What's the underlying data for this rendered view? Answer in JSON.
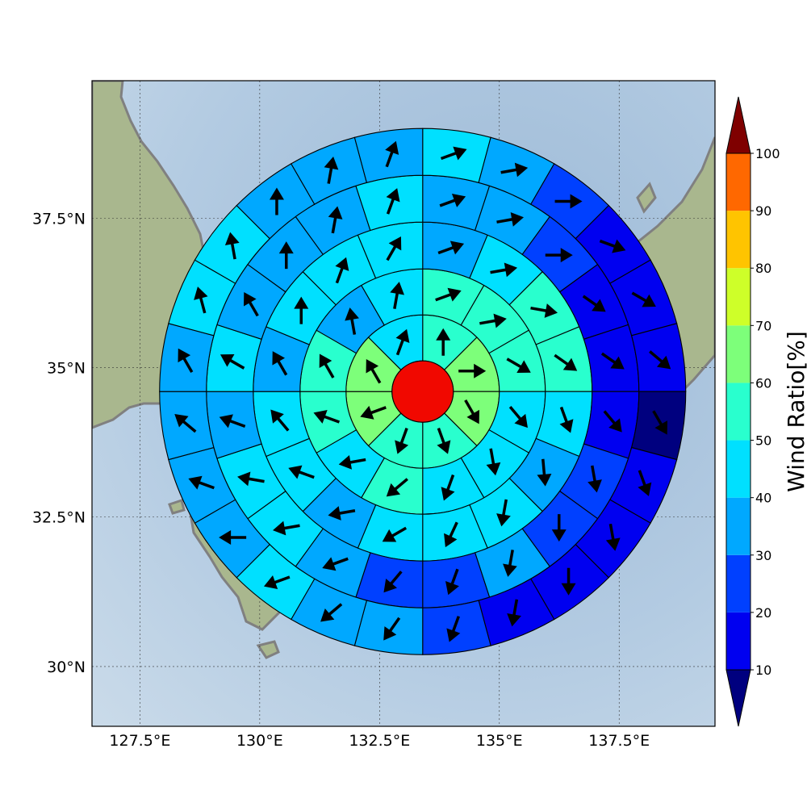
{
  "chart_data": {
    "type": "heatmap",
    "subtype": "polar sector wind-ratio map with direction arrows",
    "title": "",
    "map": {
      "lon_range": [
        126.5,
        139.5
      ],
      "lat_range": [
        29,
        39.8
      ],
      "x_ticks": [
        {
          "value": 127.5,
          "label": "127.5°E"
        },
        {
          "value": 130,
          "label": "130°E"
        },
        {
          "value": 132.5,
          "label": "132.5°E"
        },
        {
          "value": 135,
          "label": "135°E"
        },
        {
          "value": 137.5,
          "label": "137.5°E"
        }
      ],
      "y_ticks": [
        {
          "value": 30,
          "label": "30°N"
        },
        {
          "value": 32.5,
          "label": "32.5°N"
        },
        {
          "value": 35,
          "label": "35°N"
        },
        {
          "value": 37.5,
          "label": "37.5°N"
        }
      ],
      "grid": true,
      "colors": {
        "sea": "#a7c2dc",
        "land": "#a9b78e",
        "coastline": "#808080"
      }
    },
    "center": {
      "lon": 133.4,
      "lat": 34.6,
      "value": 100
    },
    "rings": [
      "ring1",
      "ring2",
      "ring3",
      "ring4",
      "ring5"
    ],
    "ring_sectors": [
      8,
      12,
      16,
      20,
      24
    ],
    "ring_values": [
      [
        52,
        60,
        66,
        52,
        55,
        65,
        64,
        48
      ],
      [
        50,
        52,
        56,
        43,
        45,
        43,
        50,
        48,
        56,
        52,
        38,
        42
      ],
      [
        37,
        42,
        55,
        50,
        41,
        36,
        42,
        44,
        47,
        38,
        45,
        42,
        38,
        43,
        46,
        41
      ],
      [
        38,
        38,
        26,
        16,
        12,
        15,
        24,
        28,
        32,
        28,
        24,
        35,
        40,
        42,
        38,
        44,
        38,
        36,
        30,
        40
      ],
      [
        40,
        32,
        22,
        18,
        14,
        12,
        8,
        12,
        14,
        18,
        18,
        22,
        32,
        36,
        42,
        34,
        35,
        36,
        38,
        44,
        42,
        38,
        34,
        36
      ]
    ],
    "ring_directions": [
      [
        0,
        90,
        150,
        160,
        200,
        250,
        330,
        20
      ],
      [
        70,
        80,
        120,
        140,
        170,
        200,
        230,
        260,
        290,
        330,
        350,
        10
      ],
      [
        70,
        80,
        100,
        125,
        160,
        175,
        190,
        205,
        240,
        260,
        290,
        320,
        330,
        0,
        20,
        30
      ],
      [
        70,
        80,
        90,
        125,
        125,
        140,
        170,
        180,
        190,
        200,
        220,
        250,
        260,
        280,
        290,
        300,
        330,
        0,
        10,
        20
      ],
      [
        70,
        80,
        90,
        110,
        120,
        130,
        150,
        160,
        170,
        180,
        190,
        200,
        215,
        230,
        250,
        270,
        290,
        310,
        330,
        345,
        350,
        0,
        10,
        20
      ]
    ],
    "colorbar": {
      "label": "Wind Ratio[%]",
      "ticks": [
        "10",
        "20",
        "30",
        "40",
        "50",
        "60",
        "70",
        "80",
        "90",
        "100"
      ],
      "levels": [
        0,
        10,
        20,
        30,
        40,
        50,
        60,
        70,
        80,
        90,
        100,
        110
      ],
      "colors": [
        "#00007f",
        "#0000f0",
        "#0040ff",
        "#00a8ff",
        "#00e0ff",
        "#29ffce",
        "#7dff7a",
        "#ceff29",
        "#ffc400",
        "#ff6800",
        "#f10800",
        "#7f0000"
      ]
    }
  }
}
